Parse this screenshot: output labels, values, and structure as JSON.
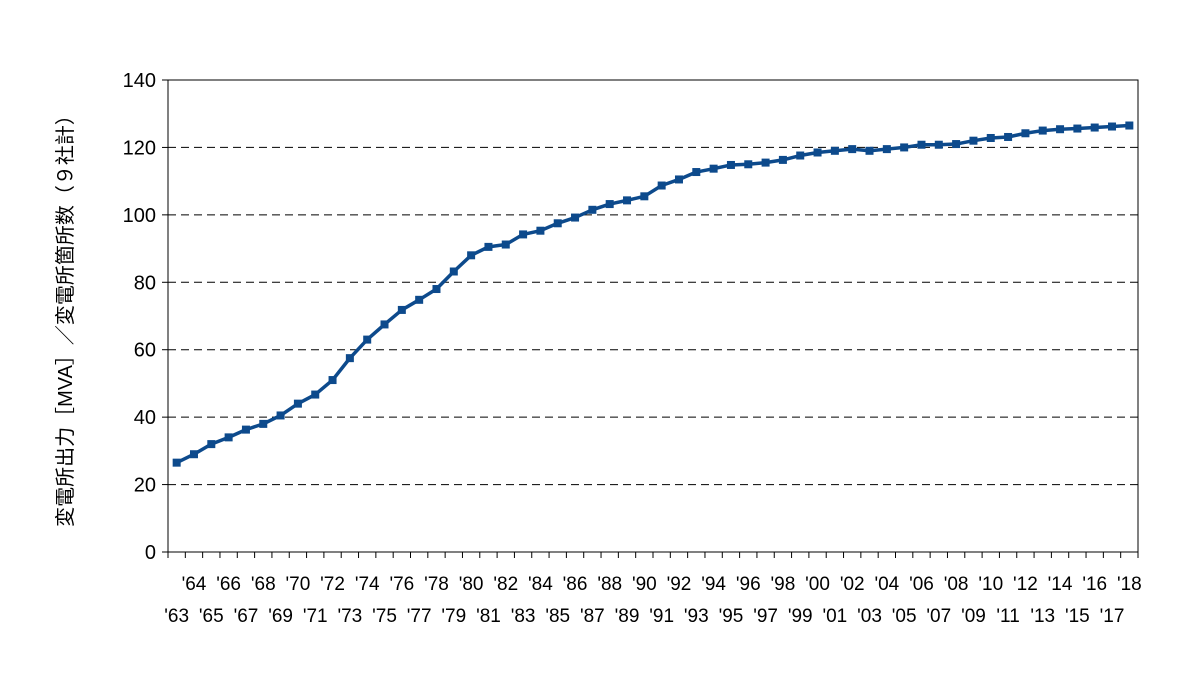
{
  "chart_data": {
    "type": "line",
    "title": "",
    "xlabel": "",
    "ylabel": "変電所出力［MVA］／変電所箇所数（９社計）",
    "ylim": [
      0,
      140
    ],
    "yticks": [
      0,
      20,
      40,
      60,
      80,
      100,
      120,
      140
    ],
    "grid": "horizontal dashed",
    "legend": "none",
    "line_color": "#0d4a8c",
    "x": [
      "'63",
      "'64",
      "'65",
      "'66",
      "'67",
      "'68",
      "'69",
      "'70",
      "'71",
      "'72",
      "'73",
      "'74",
      "'75",
      "'76",
      "'77",
      "'78",
      "'79",
      "'80",
      "'81",
      "'82",
      "'83",
      "'84",
      "'85",
      "'86",
      "'87",
      "'88",
      "'89",
      "'90",
      "'91",
      "'92",
      "'93",
      "'94",
      "'95",
      "'96",
      "'97",
      "'98",
      "'99",
      "'00",
      "'01",
      "'02",
      "'03",
      "'04",
      "'05",
      "'06",
      "'07",
      "'08",
      "'09",
      "'10",
      "'11",
      "'12",
      "'13",
      "'14",
      "'15",
      "'16",
      "'17",
      "'18"
    ],
    "series": [
      {
        "values": [
          26.5,
          29,
          32,
          34,
          36.3,
          38,
          40.5,
          44,
          46.7,
          51,
          57.5,
          63,
          67.5,
          71.8,
          74.8,
          78,
          83.2,
          88,
          90.5,
          91.2,
          94.2,
          95.3,
          97.5,
          99.2,
          101.5,
          103.2,
          104.3,
          105.5,
          108.7,
          110.5,
          112.7,
          113.7,
          114.8,
          115,
          115.5,
          116.3,
          117.6,
          118.5,
          119,
          119.5,
          119,
          119.5,
          120,
          120.8,
          120.8,
          121,
          122,
          122.8,
          123.1,
          124.2,
          125,
          125.4,
          125.6,
          125.9,
          126.2,
          126.5
        ]
      }
    ]
  }
}
